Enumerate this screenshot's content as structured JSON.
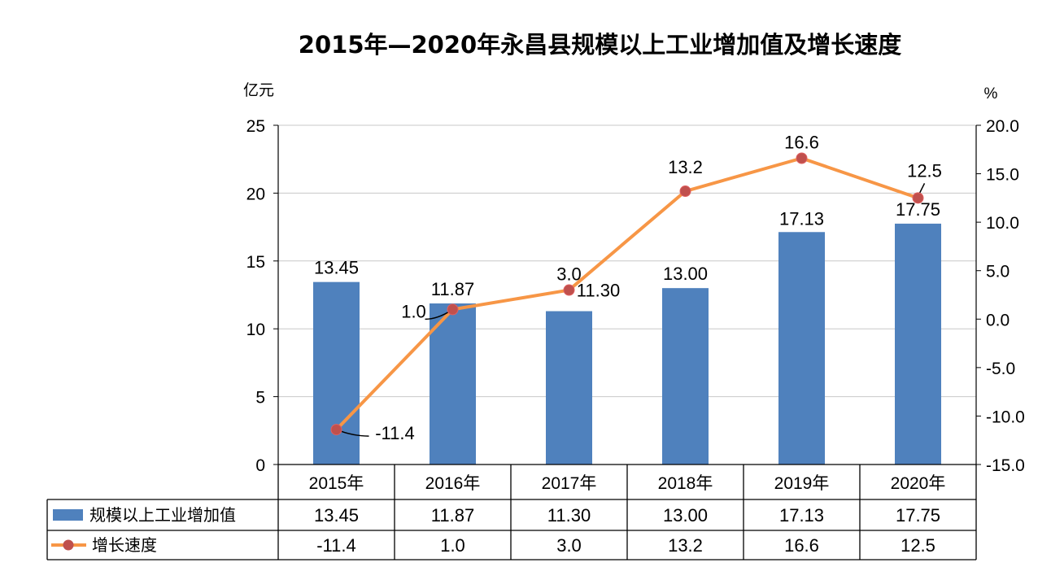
{
  "title": "2015年—2020年永昌县规模以上工业增加值及增长速度",
  "colors": {
    "bar": "#4f81bd",
    "line": "#f79646",
    "marker": "#c0504d",
    "grid": "#c8c8c8"
  },
  "chart_data": {
    "type": "bar",
    "title": "2015年—2020年永昌县规模以上工业增加值及增长速度",
    "categories": [
      "2015年",
      "2016年",
      "2017年",
      "2018年",
      "2019年",
      "2020年"
    ],
    "y_left": {
      "unit": "亿元",
      "ylim": [
        0,
        25
      ],
      "ticks": [
        "0",
        "5",
        "10",
        "15",
        "20",
        "25"
      ]
    },
    "y_right": {
      "unit": "%",
      "ylim": [
        -15,
        20
      ],
      "ticks": [
        "-15.0",
        "-10.0",
        "-5.0",
        "0.0",
        "5.0",
        "10.0",
        "15.0",
        "20.0"
      ]
    },
    "grid": true,
    "legend": "data-table-below",
    "series": [
      {
        "name": "规模以上工业增加值",
        "type": "bar",
        "axis": "left",
        "values": [
          13.45,
          11.87,
          11.3,
          13.0,
          17.13,
          17.75
        ],
        "labels": [
          "13.45",
          "11.87",
          "11.30",
          "13.00",
          "17.13",
          "17.75"
        ]
      },
      {
        "name": "增长速度",
        "type": "line",
        "axis": "right",
        "values": [
          -11.4,
          1.0,
          3.0,
          13.2,
          16.6,
          12.5
        ],
        "labels": [
          "-11.4",
          "1.0",
          "3.0",
          "13.2",
          "16.6",
          "12.5"
        ]
      }
    ]
  }
}
